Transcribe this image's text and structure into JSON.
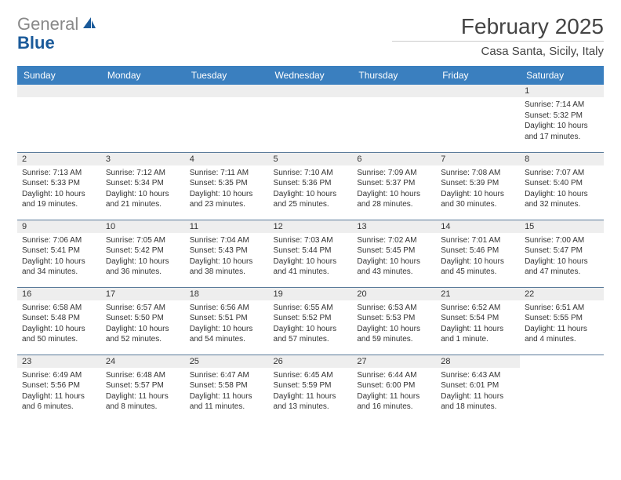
{
  "logo": {
    "grey": "General",
    "blue": "Blue"
  },
  "title": "February 2025",
  "location": "Casa Santa, Sicily, Italy",
  "colors": {
    "header_bg": "#3a7fbf",
    "header_text": "#ffffff",
    "daynum_bg": "#eeeeee",
    "row_border": "#5a7a9a",
    "logo_grey": "#888888",
    "logo_blue": "#1a5a9a",
    "body_text": "#333333"
  },
  "weekdays": [
    "Sunday",
    "Monday",
    "Tuesday",
    "Wednesday",
    "Thursday",
    "Friday",
    "Saturday"
  ],
  "weeks": [
    [
      null,
      null,
      null,
      null,
      null,
      null,
      {
        "n": "1",
        "sr": "Sunrise: 7:14 AM",
        "ss": "Sunset: 5:32 PM",
        "dl": "Daylight: 10 hours and 17 minutes."
      }
    ],
    [
      {
        "n": "2",
        "sr": "Sunrise: 7:13 AM",
        "ss": "Sunset: 5:33 PM",
        "dl": "Daylight: 10 hours and 19 minutes."
      },
      {
        "n": "3",
        "sr": "Sunrise: 7:12 AM",
        "ss": "Sunset: 5:34 PM",
        "dl": "Daylight: 10 hours and 21 minutes."
      },
      {
        "n": "4",
        "sr": "Sunrise: 7:11 AM",
        "ss": "Sunset: 5:35 PM",
        "dl": "Daylight: 10 hours and 23 minutes."
      },
      {
        "n": "5",
        "sr": "Sunrise: 7:10 AM",
        "ss": "Sunset: 5:36 PM",
        "dl": "Daylight: 10 hours and 25 minutes."
      },
      {
        "n": "6",
        "sr": "Sunrise: 7:09 AM",
        "ss": "Sunset: 5:37 PM",
        "dl": "Daylight: 10 hours and 28 minutes."
      },
      {
        "n": "7",
        "sr": "Sunrise: 7:08 AM",
        "ss": "Sunset: 5:39 PM",
        "dl": "Daylight: 10 hours and 30 minutes."
      },
      {
        "n": "8",
        "sr": "Sunrise: 7:07 AM",
        "ss": "Sunset: 5:40 PM",
        "dl": "Daylight: 10 hours and 32 minutes."
      }
    ],
    [
      {
        "n": "9",
        "sr": "Sunrise: 7:06 AM",
        "ss": "Sunset: 5:41 PM",
        "dl": "Daylight: 10 hours and 34 minutes."
      },
      {
        "n": "10",
        "sr": "Sunrise: 7:05 AM",
        "ss": "Sunset: 5:42 PM",
        "dl": "Daylight: 10 hours and 36 minutes."
      },
      {
        "n": "11",
        "sr": "Sunrise: 7:04 AM",
        "ss": "Sunset: 5:43 PM",
        "dl": "Daylight: 10 hours and 38 minutes."
      },
      {
        "n": "12",
        "sr": "Sunrise: 7:03 AM",
        "ss": "Sunset: 5:44 PM",
        "dl": "Daylight: 10 hours and 41 minutes."
      },
      {
        "n": "13",
        "sr": "Sunrise: 7:02 AM",
        "ss": "Sunset: 5:45 PM",
        "dl": "Daylight: 10 hours and 43 minutes."
      },
      {
        "n": "14",
        "sr": "Sunrise: 7:01 AM",
        "ss": "Sunset: 5:46 PM",
        "dl": "Daylight: 10 hours and 45 minutes."
      },
      {
        "n": "15",
        "sr": "Sunrise: 7:00 AM",
        "ss": "Sunset: 5:47 PM",
        "dl": "Daylight: 10 hours and 47 minutes."
      }
    ],
    [
      {
        "n": "16",
        "sr": "Sunrise: 6:58 AM",
        "ss": "Sunset: 5:48 PM",
        "dl": "Daylight: 10 hours and 50 minutes."
      },
      {
        "n": "17",
        "sr": "Sunrise: 6:57 AM",
        "ss": "Sunset: 5:50 PM",
        "dl": "Daylight: 10 hours and 52 minutes."
      },
      {
        "n": "18",
        "sr": "Sunrise: 6:56 AM",
        "ss": "Sunset: 5:51 PM",
        "dl": "Daylight: 10 hours and 54 minutes."
      },
      {
        "n": "19",
        "sr": "Sunrise: 6:55 AM",
        "ss": "Sunset: 5:52 PM",
        "dl": "Daylight: 10 hours and 57 minutes."
      },
      {
        "n": "20",
        "sr": "Sunrise: 6:53 AM",
        "ss": "Sunset: 5:53 PM",
        "dl": "Daylight: 10 hours and 59 minutes."
      },
      {
        "n": "21",
        "sr": "Sunrise: 6:52 AM",
        "ss": "Sunset: 5:54 PM",
        "dl": "Daylight: 11 hours and 1 minute."
      },
      {
        "n": "22",
        "sr": "Sunrise: 6:51 AM",
        "ss": "Sunset: 5:55 PM",
        "dl": "Daylight: 11 hours and 4 minutes."
      }
    ],
    [
      {
        "n": "23",
        "sr": "Sunrise: 6:49 AM",
        "ss": "Sunset: 5:56 PM",
        "dl": "Daylight: 11 hours and 6 minutes."
      },
      {
        "n": "24",
        "sr": "Sunrise: 6:48 AM",
        "ss": "Sunset: 5:57 PM",
        "dl": "Daylight: 11 hours and 8 minutes."
      },
      {
        "n": "25",
        "sr": "Sunrise: 6:47 AM",
        "ss": "Sunset: 5:58 PM",
        "dl": "Daylight: 11 hours and 11 minutes."
      },
      {
        "n": "26",
        "sr": "Sunrise: 6:45 AM",
        "ss": "Sunset: 5:59 PM",
        "dl": "Daylight: 11 hours and 13 minutes."
      },
      {
        "n": "27",
        "sr": "Sunrise: 6:44 AM",
        "ss": "Sunset: 6:00 PM",
        "dl": "Daylight: 11 hours and 16 minutes."
      },
      {
        "n": "28",
        "sr": "Sunrise: 6:43 AM",
        "ss": "Sunset: 6:01 PM",
        "dl": "Daylight: 11 hours and 18 minutes."
      },
      null
    ]
  ]
}
